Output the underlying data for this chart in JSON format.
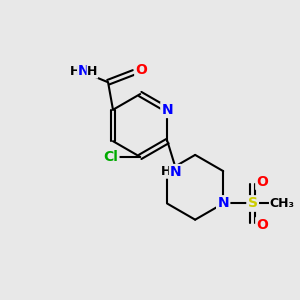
{
  "background_color": "#e8e8e8",
  "bond_color": "#000000",
  "atom_colors": {
    "N": "#0000ff",
    "O": "#ff0000",
    "Cl": "#00aa00",
    "S": "#cccc00",
    "C": "#000000",
    "H": "#000000"
  }
}
